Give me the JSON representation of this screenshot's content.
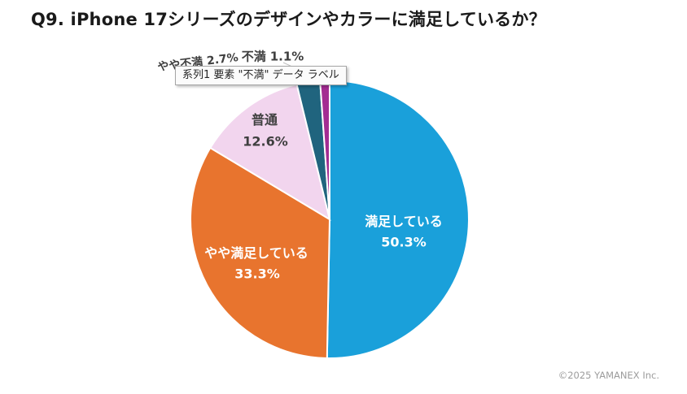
{
  "page": {
    "title": "Q9. iPhone 17シリーズのデザインやカラーに満足しているか？",
    "copyright": "©2025 YAMANEX Inc."
  },
  "tooltip": {
    "text": "系列1 要素 \"不満\" データ ラベル"
  },
  "chart_data": {
    "type": "pie",
    "title": "Q9. iPhone 17シリーズのデザインやカラーに満足しているか？",
    "categories": [
      "満足している",
      "やや満足している",
      "普通",
      "やや不満",
      "不満"
    ],
    "values": [
      50.3,
      33.3,
      12.6,
      2.7,
      1.1
    ],
    "unit": "%",
    "start_at": "12-oclock-clockwise",
    "legend": "none",
    "colors": [
      "#1AA0DA",
      "#E8742E",
      "#F2D5EE",
      "#20647E",
      "#A32C92"
    ],
    "label_text_colors": [
      "#FFFFFF",
      "#FFFFFF",
      "#3F3F3F",
      "#3F3F3F",
      "#3F3F3F"
    ],
    "slice_labels": [
      {
        "name": "満足している",
        "pct": "50.3%"
      },
      {
        "name": "やや満足している",
        "pct": "33.3%"
      },
      {
        "name": "普通",
        "pct": "12.6%"
      },
      {
        "name": "やや不満",
        "pct": "2.7%"
      },
      {
        "name": "不満",
        "pct": "1.1%"
      }
    ]
  }
}
